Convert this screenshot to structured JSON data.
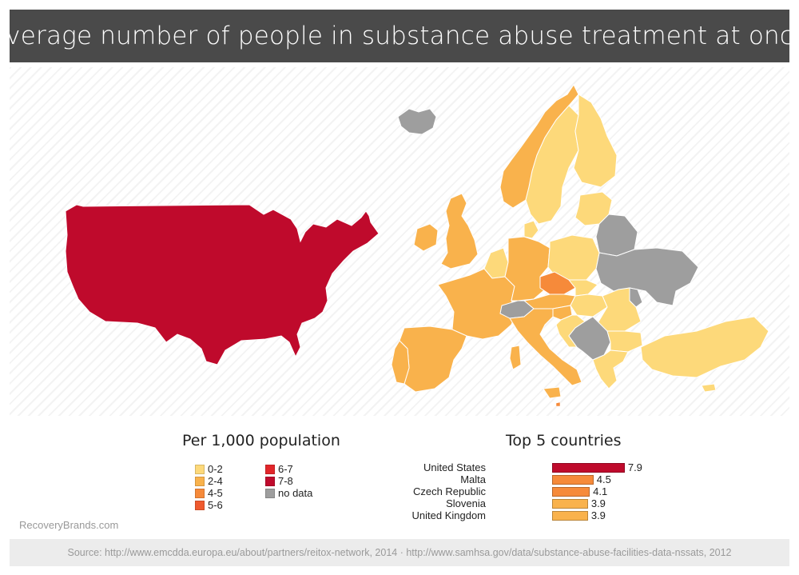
{
  "title": "Average number of people in substance abuse treatment at once",
  "legend": {
    "title": "Per 1,000 population",
    "items": [
      {
        "label": "0-2",
        "color": "#fdd97a"
      },
      {
        "label": "2-4",
        "color": "#f9b24c"
      },
      {
        "label": "4-5",
        "color": "#f68a3a"
      },
      {
        "label": "5-6",
        "color": "#ef5a2e"
      },
      {
        "label": "6-7",
        "color": "#e2262a"
      },
      {
        "label": "7-8",
        "color": "#bf0a2c"
      },
      {
        "label": "no data",
        "color": "#9e9e9e"
      }
    ]
  },
  "top5": {
    "title": "Top 5 countries",
    "max": 8,
    "countries": [
      {
        "name": "United States",
        "value": 7.9,
        "display": "7.9",
        "color": "#bf0a2c"
      },
      {
        "name": "Malta",
        "value": 4.5,
        "display": "4.5",
        "color": "#f68a3a"
      },
      {
        "name": "Czech Republic",
        "value": 4.1,
        "display": "4.1",
        "color": "#f68a3a"
      },
      {
        "name": "Slovenia",
        "value": 3.9,
        "display": "3.9",
        "color": "#f9b24c"
      },
      {
        "name": "United Kingdom",
        "value": 3.9,
        "display": "3.9",
        "color": "#f9b24c"
      }
    ]
  },
  "brand": "RecoveryBrands.com",
  "source": "Source: http://www.emcdda.europa.eu/about/partners/reitox-network, 2014  ·  http://www.samhsa.gov/data/substance-abuse-facilities-data-nssats, 2012"
}
